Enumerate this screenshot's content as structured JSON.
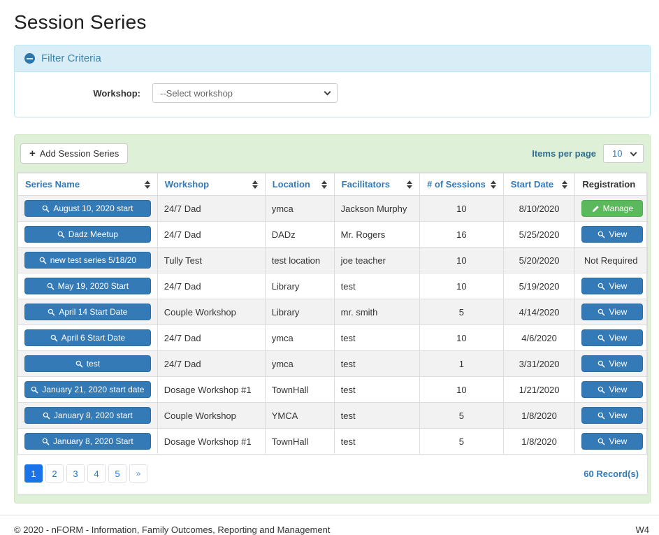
{
  "page_title": "Session Series",
  "filter": {
    "title": "Filter Criteria",
    "workshop_label": "Workshop:",
    "workshop_selected": "--Select workshop"
  },
  "toolbar": {
    "add_button_label": "Add Session Series",
    "items_per_page_label": "Items per page",
    "items_per_page_value": "10"
  },
  "table": {
    "headers": [
      {
        "label": "Series Name",
        "sortable": true
      },
      {
        "label": "Workshop",
        "sortable": true
      },
      {
        "label": "Location",
        "sortable": true
      },
      {
        "label": "Facilitators",
        "sortable": true
      },
      {
        "label": "# of Sessions",
        "sortable": true
      },
      {
        "label": "Start Date",
        "sortable": true
      },
      {
        "label": "Registration",
        "sortable": false
      }
    ],
    "rows": [
      {
        "series_name": "August 10, 2020 start",
        "workshop": "24/7 Dad",
        "location": "ymca",
        "facilitators": "Jackson Murphy",
        "sessions": "10",
        "start_date": "8/10/2020",
        "registration": {
          "type": "manage",
          "label": "Manage"
        }
      },
      {
        "series_name": "Dadz Meetup",
        "workshop": "24/7 Dad",
        "location": "DADz",
        "facilitators": "Mr. Rogers",
        "sessions": "16",
        "start_date": "5/25/2020",
        "registration": {
          "type": "view",
          "label": "View"
        }
      },
      {
        "series_name": "new test series 5/18/20",
        "workshop": "Tully Test",
        "location": "test location",
        "facilitators": "joe teacher",
        "sessions": "10",
        "start_date": "5/20/2020",
        "registration": {
          "type": "text",
          "label": "Not Required"
        }
      },
      {
        "series_name": "May 19, 2020 Start",
        "workshop": "24/7 Dad",
        "location": "Library",
        "facilitators": "test",
        "sessions": "10",
        "start_date": "5/19/2020",
        "registration": {
          "type": "view",
          "label": "View"
        }
      },
      {
        "series_name": "April 14 Start Date",
        "workshop": "Couple Workshop",
        "location": "Library",
        "facilitators": "mr. smith",
        "sessions": "5",
        "start_date": "4/14/2020",
        "registration": {
          "type": "view",
          "label": "View"
        }
      },
      {
        "series_name": "April 6 Start Date",
        "workshop": "24/7 Dad",
        "location": "ymca",
        "facilitators": "test",
        "sessions": "10",
        "start_date": "4/6/2020",
        "registration": {
          "type": "view",
          "label": "View"
        }
      },
      {
        "series_name": "test",
        "workshop": "24/7 Dad",
        "location": "ymca",
        "facilitators": "test",
        "sessions": "1",
        "start_date": "3/31/2020",
        "registration": {
          "type": "view",
          "label": "View"
        }
      },
      {
        "series_name": "January 21, 2020 start date",
        "workshop": "Dosage Workshop #1",
        "location": "TownHall",
        "facilitators": "test",
        "sessions": "10",
        "start_date": "1/21/2020",
        "registration": {
          "type": "view",
          "label": "View"
        }
      },
      {
        "series_name": "January 8, 2020 start",
        "workshop": "Couple Workshop",
        "location": "YMCA",
        "facilitators": "test",
        "sessions": "5",
        "start_date": "1/8/2020",
        "registration": {
          "type": "view",
          "label": "View"
        }
      },
      {
        "series_name": "January 8, 2020 Start",
        "workshop": "Dosage Workshop #1",
        "location": "TownHall",
        "facilitators": "test",
        "sessions": "5",
        "start_date": "1/8/2020",
        "registration": {
          "type": "view",
          "label": "View"
        }
      }
    ]
  },
  "pagination": {
    "pages": [
      "1",
      "2",
      "3",
      "4",
      "5",
      "»"
    ],
    "active_page": "1",
    "record_count": "60 Record(s)"
  },
  "footer": {
    "copyright": "© 2020 - nFORM - Information, Family Outcomes, Reporting and Management",
    "workstation": "W4"
  },
  "icons": {
    "filter_toggle": "minus-circle-icon",
    "add_button": "plus-icon",
    "selects": "chevron-down-icon",
    "column_sort": "sort-icon",
    "series_and_view_buttons": "search-icon",
    "manage_button": "pencil-icon"
  },
  "colors": {
    "primary_blue": "#337ab7",
    "success_green": "#5cb85c",
    "filter_header_bg": "#d9edf7",
    "filter_header_text": "#3a87ad",
    "card_bg": "#dff0d8",
    "row_stripe": "#f2f2f2",
    "pagination_active": "#1a73e8"
  }
}
